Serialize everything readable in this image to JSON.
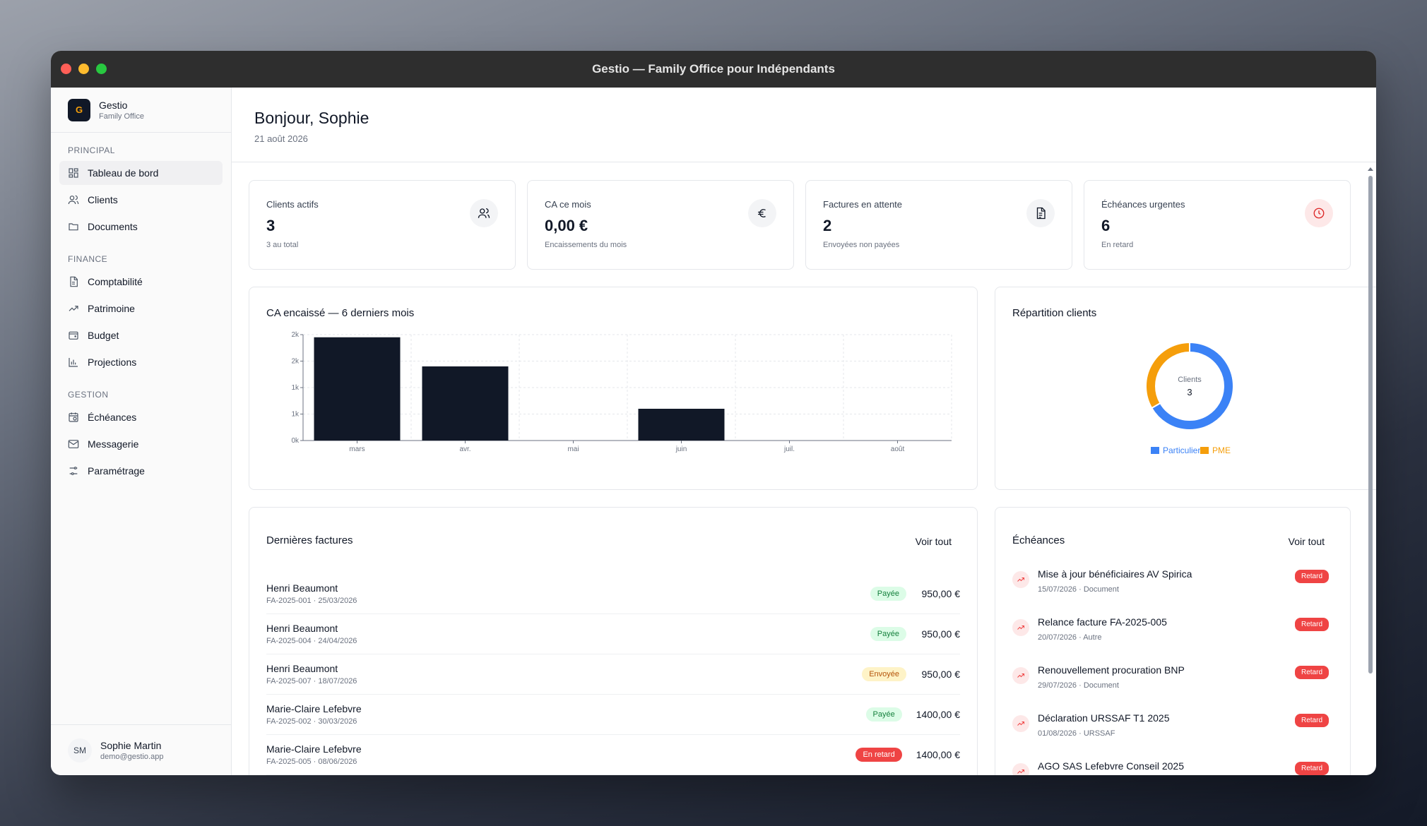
{
  "window": {
    "title": "Gestio — Family Office pour Indépendants"
  },
  "brand": {
    "logo": "G",
    "name": "Gestio",
    "sub": "Family Office"
  },
  "sidebar": {
    "sections": [
      {
        "heading": "PRINCIPAL",
        "items": [
          {
            "label": "Tableau de bord",
            "icon": "dashboard-icon",
            "active": true
          },
          {
            "label": "Clients",
            "icon": "users-icon"
          },
          {
            "label": "Documents",
            "icon": "folder-icon"
          }
        ]
      },
      {
        "heading": "FINANCE",
        "items": [
          {
            "label": "Comptabilité",
            "icon": "file-text-icon"
          },
          {
            "label": "Patrimoine",
            "icon": "trending-up-icon"
          },
          {
            "label": "Budget",
            "icon": "wallet-icon"
          },
          {
            "label": "Projections",
            "icon": "bar-chart-icon"
          }
        ]
      },
      {
        "heading": "GESTION",
        "items": [
          {
            "label": "Échéances",
            "icon": "calendar-clock-icon"
          },
          {
            "label": "Messagerie",
            "icon": "mail-icon"
          },
          {
            "label": "Paramétrage",
            "icon": "sliders-icon"
          }
        ]
      }
    ]
  },
  "user": {
    "initials": "SM",
    "name": "Sophie Martin",
    "email": "demo@gestio.app"
  },
  "header": {
    "greeting": "Bonjour, Sophie",
    "date": "21 août 2026"
  },
  "kpis": [
    {
      "label": "Clients actifs",
      "value": "3",
      "sub": "3 au total",
      "icon": "users-icon"
    },
    {
      "label": "CA ce mois",
      "value": "0,00 €",
      "sub": "Encaissements du mois",
      "icon": "euro-icon"
    },
    {
      "label": "Factures en attente",
      "value": "2",
      "sub": "Envoyées non payées",
      "icon": "document-icon"
    },
    {
      "label": "Échéances urgentes",
      "value": "6",
      "sub": "En retard",
      "icon": "clock-icon",
      "accent": "#dc2626"
    }
  ],
  "revenue_chart": {
    "title": "CA encaissé — 6 derniers mois"
  },
  "chart_data": [
    {
      "type": "bar",
      "title": "CA encaissé — 6 derniers mois",
      "categories": [
        "mars",
        "avr.",
        "mai",
        "juin",
        "juil.",
        "août"
      ],
      "values": [
        1950,
        1400,
        0,
        600,
        0,
        0
      ],
      "ytick_labels": [
        "0k",
        "1k",
        "1k",
        "2k",
        "2k"
      ],
      "ytick_values": [
        0,
        500,
        1000,
        1500,
        2000
      ],
      "ylim": [
        0,
        2000
      ],
      "grid": true,
      "bar_color": "#111827"
    },
    {
      "type": "pie",
      "title": "Répartition clients",
      "center_label": "Clients",
      "center_value": "3",
      "categories": [
        "Particuliers",
        "PME"
      ],
      "values": [
        2,
        1
      ],
      "colors": [
        "#3b82f6",
        "#f59e0b"
      ],
      "legend": "bottom"
    }
  ],
  "invoices": {
    "title": "Dernières factures",
    "link": "Voir tout",
    "rows": [
      {
        "client": "Henri Beaumont",
        "meta": "FA-2025-001 · 25/03/2026",
        "status": "Payée",
        "status_kind": "payee",
        "amount": "950,00 €"
      },
      {
        "client": "Henri Beaumont",
        "meta": "FA-2025-004 · 24/04/2026",
        "status": "Payée",
        "status_kind": "payee",
        "amount": "950,00 €"
      },
      {
        "client": "Henri Beaumont",
        "meta": "FA-2025-007 · 18/07/2026",
        "status": "Envoyée",
        "status_kind": "envoyee",
        "amount": "950,00 €"
      },
      {
        "client": "Marie-Claire Lefebvre",
        "meta": "FA-2025-002 · 30/03/2026",
        "status": "Payée",
        "status_kind": "payee",
        "amount": "1400,00 €"
      },
      {
        "client": "Marie-Claire Lefebvre",
        "meta": "FA-2025-005 · 08/06/2026",
        "status": "En retard",
        "status_kind": "retard",
        "amount": "1400,00 €"
      }
    ]
  },
  "deadlines": {
    "title": "Échéances",
    "link": "Voir tout",
    "items": [
      {
        "title": "Mise à jour bénéficiaires AV Spirica",
        "meta": "15/07/2026 · Document",
        "badge": "Retard"
      },
      {
        "title": "Relance facture FA-2025-005",
        "meta": "20/07/2026 · Autre",
        "badge": "Retard"
      },
      {
        "title": "Renouvellement procuration BNP",
        "meta": "29/07/2026 · Document",
        "badge": "Retard"
      },
      {
        "title": "Déclaration URSSAF T1 2025",
        "meta": "01/08/2026 · URSSAF",
        "badge": "Retard"
      },
      {
        "title": "AGO SAS Lefebvre Conseil 2025",
        "meta": "",
        "badge": "Retard"
      }
    ]
  }
}
